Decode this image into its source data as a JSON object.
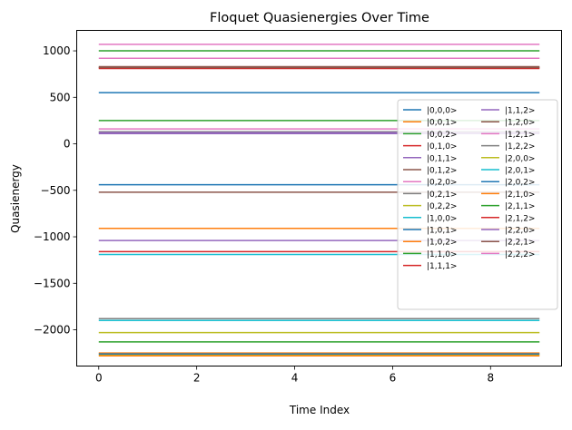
{
  "chart_data": {
    "type": "line",
    "title": "Floquet Quasienergies Over Time",
    "xlabel": "Time Index",
    "ylabel": "Quasienergy",
    "x": [
      0,
      1,
      2,
      3,
      4,
      5,
      6,
      7,
      8,
      9
    ],
    "xlim": [
      -0.45,
      9.45
    ],
    "ylim": [
      -2390,
      1220
    ],
    "xticks": [
      0,
      2,
      4,
      6,
      8
    ],
    "xtick_labels": [
      "0",
      "2",
      "4",
      "6",
      "8"
    ],
    "yticks": [
      1000,
      500,
      0,
      -500,
      -1000,
      -1500,
      -2000
    ],
    "ytick_labels": [
      "1000",
      "500",
      "0",
      "−500",
      "−1000",
      "−1500",
      "−2000"
    ],
    "grid": false,
    "legend_position": "center-right",
    "series": [
      {
        "name": "|0,0,0>",
        "color": "#1f77b4",
        "value": 550
      },
      {
        "name": "|0,0,1>",
        "color": "#ff7f0e",
        "value": -2250
      },
      {
        "name": "|0,0,2>",
        "color": "#2ca02c",
        "value": 1000
      },
      {
        "name": "|0,1,0>",
        "color": "#d62728",
        "value": 820
      },
      {
        "name": "|0,1,1>",
        "color": "#9467bd",
        "value": -1040
      },
      {
        "name": "|0,1,2>",
        "color": "#8c564b",
        "value": 830
      },
      {
        "name": "|0,2,0>",
        "color": "#e377c2",
        "value": 160
      },
      {
        "name": "|0,2,1>",
        "color": "#7f7f7f",
        "value": 130
      },
      {
        "name": "|0,2,2>",
        "color": "#bcbd22",
        "value": -2030
      },
      {
        "name": "|1,0,0>",
        "color": "#17becf",
        "value": -1190
      },
      {
        "name": "|1,0,1>",
        "color": "#1f77b4",
        "value": -440
      },
      {
        "name": "|1,0,2>",
        "color": "#ff7f0e",
        "value": -910
      },
      {
        "name": "|1,1,0>",
        "color": "#2ca02c",
        "value": 250
      },
      {
        "name": "|1,1,1>",
        "color": "#d62728",
        "value": -1160
      },
      {
        "name": "|1,1,2>",
        "color": "#9467bd",
        "value": 120
      },
      {
        "name": "|1,2,0>",
        "color": "#8c564b",
        "value": -520
      },
      {
        "name": "|1,2,1>",
        "color": "#e377c2",
        "value": 920
      },
      {
        "name": "|1,2,2>",
        "color": "#7f7f7f",
        "value": -1880
      },
      {
        "name": "|2,0,0>",
        "color": "#bcbd22",
        "value": -2270
      },
      {
        "name": "|2,0,1>",
        "color": "#17becf",
        "value": -1900
      },
      {
        "name": "|2,0,2>",
        "color": "#1f77b4",
        "value": -2260
      },
      {
        "name": "|2,1,0>",
        "color": "#ff7f0e",
        "value": -2280
      },
      {
        "name": "|2,1,1>",
        "color": "#2ca02c",
        "value": -2130
      },
      {
        "name": "|2,1,2>",
        "color": "#d62728",
        "value": 810
      },
      {
        "name": "|2,2,0>",
        "color": "#9467bd",
        "value": 110
      },
      {
        "name": "|2,2,1>",
        "color": "#8c564b",
        "value": 820
      },
      {
        "name": "|2,2,2>",
        "color": "#e377c2",
        "value": 1070
      }
    ]
  }
}
